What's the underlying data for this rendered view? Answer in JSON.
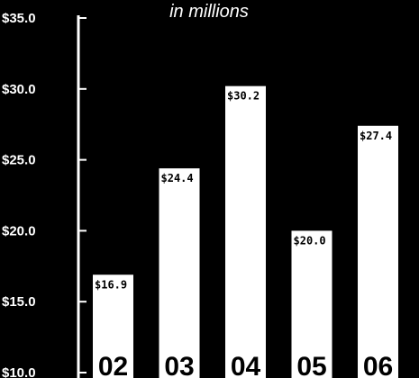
{
  "chart_data": {
    "type": "bar",
    "title": "",
    "subtitle": "in millions",
    "xlabel": "",
    "ylabel": "",
    "categories": [
      "02",
      "03",
      "04",
      "05",
      "06"
    ],
    "values": [
      16.9,
      24.4,
      30.2,
      20.0,
      27.4
    ],
    "value_labels": [
      "$16.9",
      "$24.4",
      "$30.2",
      "$20.0",
      "$27.4"
    ],
    "ylim": [
      10,
      35
    ],
    "yticks": [
      35,
      30,
      25,
      20,
      15,
      10
    ],
    "ytick_labels": [
      "$35.0",
      "$30.0",
      "$25.0",
      "$20.0",
      "$15.0",
      "$10.0"
    ],
    "grid": false,
    "colors": {
      "background": "#000000",
      "bar": "#ffffff",
      "axis": "#ffffff"
    }
  }
}
